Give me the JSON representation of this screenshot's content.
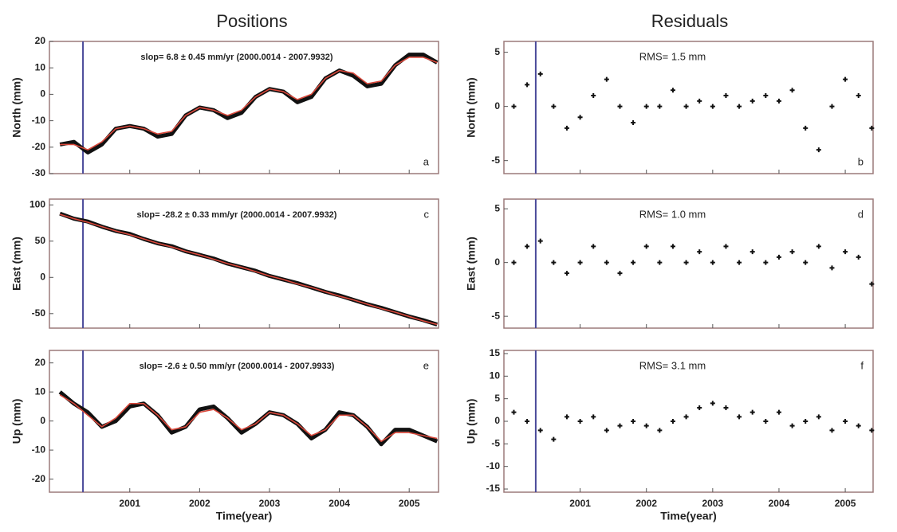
{
  "headers": [
    "Positions",
    "Residuals"
  ],
  "chart_data": [
    {
      "type": "line",
      "ylabel": "North (mm)",
      "annotation": "slop= 6.8 ± 0.45 mm/yr (2000.0014 - 2007.9932)",
      "panel_label": "a",
      "x": [
        2000.0,
        2000.2,
        2000.4,
        2000.6,
        2000.8,
        2001.0,
        2001.2,
        2001.4,
        2001.6,
        2001.8,
        2002.0,
        2002.2,
        2002.4,
        2002.6,
        2002.8,
        2003.0,
        2003.2,
        2003.4,
        2003.6,
        2003.8,
        2004.0,
        2004.2,
        2004.4,
        2004.6,
        2004.8,
        2005.0,
        2005.2,
        2005.4
      ],
      "series": [
        {
          "color": "#111111",
          "values": [
            -19,
            -18,
            -22,
            -19,
            -13,
            -12,
            -13,
            -16,
            -15,
            -8,
            -5,
            -6,
            -9,
            -7,
            -1,
            2,
            1,
            -3,
            -1,
            6,
            9,
            7,
            3,
            4,
            11,
            15,
            15,
            12
          ]
        },
        {
          "color": "#d9483b",
          "values": [
            -19,
            -19,
            -21,
            -18,
            -13,
            -12,
            -13,
            -15,
            -14,
            -8,
            -5,
            -6,
            -8,
            -6,
            -1,
            2,
            1,
            -2,
            0,
            6,
            9,
            8,
            4,
            5,
            11,
            14,
            14,
            12
          ]
        }
      ],
      "xlim": [
        1999.85,
        2005.42
      ],
      "xticks": [
        2001,
        2002,
        2003,
        2004,
        2005
      ],
      "ylim": [
        -30,
        20
      ],
      "yticks": [
        -30,
        -20,
        -10,
        0,
        10,
        20
      ],
      "event_x": 2000.33,
      "event_color": "#4a4a9a"
    },
    {
      "type": "scatter",
      "ylabel": "North (mm)",
      "annotation": "RMS= 1.5 mm",
      "panel_label": "b",
      "x": [
        2000.0,
        2000.2,
        2000.4,
        2000.6,
        2000.8,
        2001.0,
        2001.2,
        2001.4,
        2001.6,
        2001.8,
        2002.0,
        2002.2,
        2002.4,
        2002.6,
        2002.8,
        2003.0,
        2003.2,
        2003.4,
        2003.6,
        2003.8,
        2004.0,
        2004.2,
        2004.4,
        2004.6,
        2004.8,
        2005.0,
        2005.2,
        2005.4
      ],
      "series": [
        {
          "color": "#111111",
          "values": [
            0,
            2,
            3,
            0,
            -2,
            -1,
            1,
            2.5,
            0,
            -1.5,
            0,
            0,
            1.5,
            0,
            0.5,
            0,
            1,
            0,
            0.5,
            1,
            0.5,
            1.5,
            -2,
            -4,
            0,
            2.5,
            1,
            -2
          ]
        }
      ],
      "xlim": [
        1999.85,
        2005.42
      ],
      "xticks": [
        2001,
        2002,
        2003,
        2004,
        2005
      ],
      "ylim": [
        -6.2,
        6
      ],
      "yticks": [
        -5,
        0,
        5
      ],
      "event_x": 2000.33,
      "event_color": "#4a4a9a"
    },
    {
      "type": "line",
      "ylabel": "East (mm)",
      "annotation": "slop= -28.2 ± 0.33 mm/yr (2000.0014 - 2007.9932)",
      "panel_label": "c",
      "x": [
        2000.0,
        2000.2,
        2000.4,
        2000.6,
        2000.8,
        2001.0,
        2001.2,
        2001.4,
        2001.6,
        2001.8,
        2002.0,
        2002.2,
        2002.4,
        2002.6,
        2002.8,
        2003.0,
        2003.2,
        2003.4,
        2003.6,
        2003.8,
        2004.0,
        2004.2,
        2004.4,
        2004.6,
        2004.8,
        2005.0,
        2005.2,
        2005.4
      ],
      "series": [
        {
          "color": "#111111",
          "values": [
            88,
            81,
            77,
            70,
            64,
            60,
            53,
            47,
            43,
            36,
            31,
            26,
            19,
            14,
            9,
            2,
            -3,
            -8,
            -14,
            -20,
            -25,
            -31,
            -37,
            -42,
            -48,
            -54,
            -59,
            -65
          ]
        },
        {
          "color": "#d9483b",
          "values": [
            87,
            81,
            76,
            70,
            64,
            59,
            53,
            47,
            42,
            36,
            31,
            25,
            19,
            14,
            8,
            2,
            -3,
            -9,
            -14,
            -20,
            -26,
            -31,
            -37,
            -43,
            -48,
            -54,
            -60,
            -65
          ]
        }
      ],
      "xlim": [
        1999.85,
        2005.42
      ],
      "xticks": [
        2001,
        2002,
        2003,
        2004,
        2005
      ],
      "ylim": [
        -70,
        108
      ],
      "yticks": [
        -50,
        0,
        50,
        100
      ],
      "event_x": 2000.33,
      "event_color": "#4a4a9a"
    },
    {
      "type": "scatter",
      "ylabel": "East (mm)",
      "annotation": "RMS= 1.0 mm",
      "panel_label": "d",
      "x": [
        2000.0,
        2000.2,
        2000.4,
        2000.6,
        2000.8,
        2001.0,
        2001.2,
        2001.4,
        2001.6,
        2001.8,
        2002.0,
        2002.2,
        2002.4,
        2002.6,
        2002.8,
        2003.0,
        2003.2,
        2003.4,
        2003.6,
        2003.8,
        2004.0,
        2004.2,
        2004.4,
        2004.6,
        2004.8,
        2005.0,
        2005.2,
        2005.4
      ],
      "series": [
        {
          "color": "#111111",
          "values": [
            0,
            1.5,
            2,
            0,
            -1,
            0,
            1.5,
            0,
            -1,
            0,
            1.5,
            0,
            1.5,
            0,
            1,
            0,
            1.5,
            0,
            1,
            0,
            0.5,
            1,
            0,
            1.5,
            -0.5,
            1,
            0.5,
            -2
          ]
        }
      ],
      "xlim": [
        1999.85,
        2005.42
      ],
      "xticks": [
        2001,
        2002,
        2003,
        2004,
        2005
      ],
      "ylim": [
        -6.1,
        5.9
      ],
      "yticks": [
        -5,
        0,
        5
      ],
      "event_x": 2000.33,
      "event_color": "#4a4a9a"
    },
    {
      "type": "line",
      "ylabel": "Up (mm)",
      "xlabel": "Time(year)",
      "annotation": "slop= -2.6 ± 0.50 mm/yr (2000.0014 - 2007.9933)",
      "panel_label": "e",
      "x": [
        2000.0,
        2000.2,
        2000.4,
        2000.6,
        2000.8,
        2001.0,
        2001.2,
        2001.4,
        2001.6,
        2001.8,
        2002.0,
        2002.2,
        2002.4,
        2002.6,
        2002.8,
        2003.0,
        2003.2,
        2003.4,
        2003.6,
        2003.8,
        2004.0,
        2004.2,
        2004.4,
        2004.6,
        2004.8,
        2005.0,
        2005.2,
        2005.4
      ],
      "series": [
        {
          "color": "#111111",
          "values": [
            10,
            6,
            3,
            -2,
            0,
            5,
            6,
            2,
            -4,
            -2,
            4,
            5,
            1,
            -4,
            -1,
            3,
            2,
            -1,
            -6,
            -3,
            3,
            2,
            -2,
            -8,
            -3,
            -3,
            -5,
            -7
          ]
        },
        {
          "color": "#d9483b",
          "values": [
            9,
            6,
            2,
            -2,
            1,
            6,
            6,
            2,
            -3,
            -2,
            3,
            4,
            1,
            -3,
            -1,
            3,
            2,
            -1,
            -5,
            -3,
            2,
            2,
            -2,
            -7,
            -4,
            -4,
            -5,
            -6
          ]
        }
      ],
      "xlim": [
        1999.85,
        2005.42
      ],
      "xticks": [
        2001,
        2002,
        2003,
        2004,
        2005
      ],
      "ylim": [
        -24.5,
        24.3
      ],
      "yticks": [
        -20,
        -10,
        0,
        10,
        20
      ],
      "event_x": 2000.33,
      "event_color": "#4a4a9a"
    },
    {
      "type": "scatter",
      "ylabel": "Up (mm)",
      "xlabel": "Time(year)",
      "annotation": "RMS= 3.1 mm",
      "panel_label": "f",
      "x": [
        2000.0,
        2000.2,
        2000.4,
        2000.6,
        2000.8,
        2001.0,
        2001.2,
        2001.4,
        2001.6,
        2001.8,
        2002.0,
        2002.2,
        2002.4,
        2002.6,
        2002.8,
        2003.0,
        2003.2,
        2003.4,
        2003.6,
        2003.8,
        2004.0,
        2004.2,
        2004.4,
        2004.6,
        2004.8,
        2005.0,
        2005.2,
        2005.4
      ],
      "series": [
        {
          "color": "#111111",
          "values": [
            2,
            0,
            -2,
            -4,
            1,
            0,
            1,
            -2,
            -1,
            0,
            -1,
            -2,
            0,
            1,
            3,
            4,
            3,
            1,
            2,
            0,
            2,
            -1,
            0,
            1,
            -2,
            0,
            -1,
            -2
          ]
        }
      ],
      "xlim": [
        1999.85,
        2005.42
      ],
      "xticks": [
        2001,
        2002,
        2003,
        2004,
        2005
      ],
      "ylim": [
        -15.7,
        15.7
      ],
      "yticks": [
        -15,
        -10,
        -5,
        0,
        5,
        10,
        15
      ],
      "event_x": 2000.33,
      "event_color": "#4a4a9a"
    }
  ]
}
